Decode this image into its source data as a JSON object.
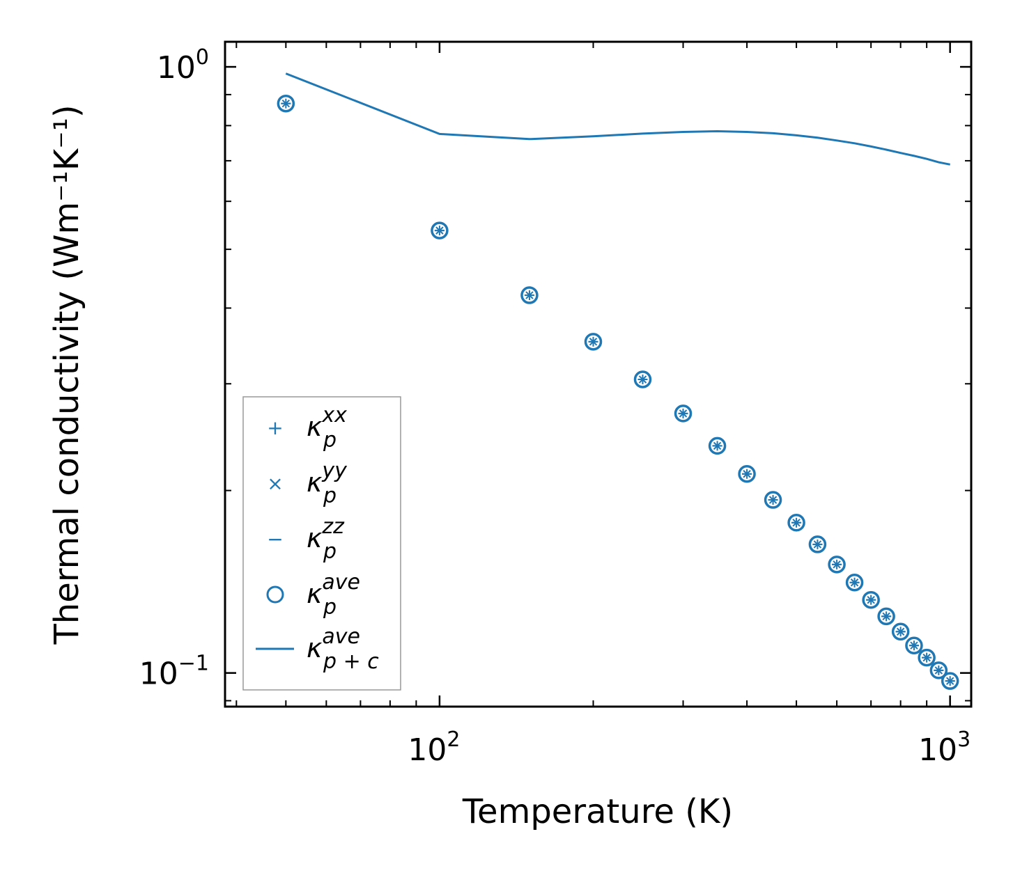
{
  "chart_data": {
    "type": "scatter",
    "xscale": "log",
    "yscale": "log",
    "xlabel": "Temperature (K)",
    "ylabel": "Thermal conductivity (Wm⁻¹K⁻¹)",
    "xlim": [
      38,
      1100
    ],
    "ylim": [
      0.088,
      1.1
    ],
    "x_ticks": [
      {
        "value": 100,
        "base": "10",
        "exp": "2"
      },
      {
        "value": 1000,
        "base": "10",
        "exp": "3"
      }
    ],
    "y_ticks": [
      {
        "value": 0.1,
        "base": "10",
        "exp": "−1"
      },
      {
        "value": 1,
        "base": "10",
        "exp": "0"
      }
    ],
    "color": "#1f77b4",
    "x": [
      50,
      100,
      150,
      200,
      250,
      300,
      350,
      400,
      450,
      500,
      550,
      600,
      650,
      700,
      750,
      800,
      850,
      900,
      950,
      1000
    ],
    "series": [
      {
        "name": "kappa_p_xx",
        "marker": "plus",
        "values": [
          0.87,
          0.537,
          0.42,
          0.352,
          0.305,
          0.268,
          0.237,
          0.213,
          0.193,
          0.177,
          0.163,
          0.151,
          0.141,
          0.132,
          0.124,
          0.117,
          0.111,
          0.106,
          0.101,
          0.097
        ]
      },
      {
        "name": "kappa_p_yy",
        "marker": "x",
        "values": [
          0.87,
          0.537,
          0.42,
          0.352,
          0.305,
          0.268,
          0.237,
          0.213,
          0.193,
          0.177,
          0.163,
          0.151,
          0.141,
          0.132,
          0.124,
          0.117,
          0.111,
          0.106,
          0.101,
          0.097
        ]
      },
      {
        "name": "kappa_p_zz",
        "marker": "minus",
        "values": [
          0.87,
          0.537,
          0.42,
          0.352,
          0.305,
          0.268,
          0.237,
          0.213,
          0.193,
          0.177,
          0.163,
          0.151,
          0.141,
          0.132,
          0.124,
          0.117,
          0.111,
          0.106,
          0.101,
          0.097
        ]
      },
      {
        "name": "kappa_p_ave",
        "marker": "circle",
        "values": [
          0.87,
          0.537,
          0.42,
          0.352,
          0.305,
          0.268,
          0.237,
          0.213,
          0.193,
          0.177,
          0.163,
          0.151,
          0.141,
          0.132,
          0.124,
          0.117,
          0.111,
          0.106,
          0.101,
          0.097
        ]
      },
      {
        "name": "kappa_p+c_ave",
        "marker": "line",
        "x": [
          50,
          100,
          150,
          200,
          250,
          300,
          350,
          400,
          450,
          500,
          550,
          600,
          650,
          700,
          750,
          800,
          850,
          900,
          950,
          1000
        ],
        "values": [
          0.975,
          0.775,
          0.76,
          0.768,
          0.776,
          0.781,
          0.783,
          0.781,
          0.777,
          0.771,
          0.764,
          0.756,
          0.748,
          0.739,
          0.73,
          0.721,
          0.713,
          0.705,
          0.696,
          0.69
        ]
      }
    ],
    "legend": {
      "position": "lower-left",
      "entries": [
        {
          "symbol": "+",
          "main": "κ",
          "sub": "p",
          "sup": "xx"
        },
        {
          "symbol": "×",
          "main": "κ",
          "sub": "p",
          "sup": "yy"
        },
        {
          "symbol": "−",
          "main": "κ",
          "sub": "p",
          "sup": "zz"
        },
        {
          "symbol": "○",
          "main": "κ",
          "sub": "p",
          "sup": "ave"
        },
        {
          "symbol": "line",
          "main": "κ",
          "sub": "p + c",
          "sup": "ave"
        }
      ]
    }
  }
}
